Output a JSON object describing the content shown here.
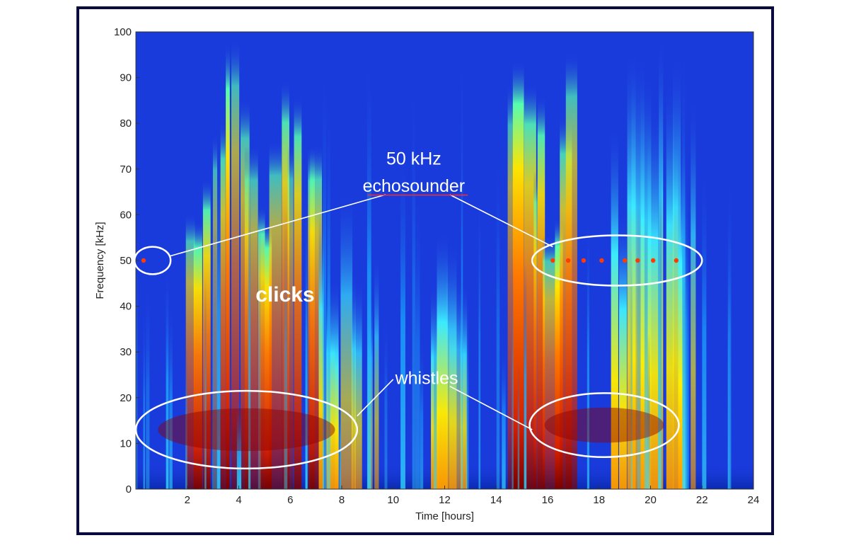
{
  "chart_data": {
    "type": "heatmap",
    "title": "",
    "xlabel": "Time [hours]",
    "ylabel": "Frequency [kHz]",
    "xlim": [
      0,
      24
    ],
    "ylim": [
      0,
      100
    ],
    "x_ticks": [
      2,
      4,
      6,
      8,
      10,
      12,
      14,
      16,
      18,
      20,
      22,
      24
    ],
    "y_ticks": [
      0,
      10,
      20,
      30,
      40,
      50,
      60,
      70,
      80,
      90,
      100
    ],
    "colormap": "jet",
    "background_color": "#1a3bdc",
    "grid": false,
    "energy_bands": [
      {
        "name": "clicks",
        "hour_start": 2.0,
        "hour_end": 7.2,
        "freq_top": 100,
        "intensity": "high"
      },
      {
        "name": "clicks",
        "hour_start": 14.5,
        "hour_end": 17.2,
        "freq_top": 100,
        "intensity": "high"
      },
      {
        "name": "clicks",
        "hour_start": 7.2,
        "hour_end": 9.5,
        "freq_top": 70,
        "intensity": "medium"
      },
      {
        "name": "clicks",
        "hour_start": 11.5,
        "hour_end": 13.0,
        "freq_top": 80,
        "intensity": "medium"
      },
      {
        "name": "clicks",
        "hour_start": 18.5,
        "hour_end": 21.8,
        "freq_top": 100,
        "intensity": "medium"
      }
    ],
    "echosounder_hits_hours": [
      0.3,
      16.2,
      16.8,
      17.4,
      18.1,
      19.0,
      19.5,
      20.1,
      21.0
    ],
    "echosounder_freq_khz": 50,
    "annotations": [
      {
        "text": "50 kHz",
        "x": 10.8,
        "y": 71
      },
      {
        "text": "echosounder",
        "x": 10.8,
        "y": 65
      },
      {
        "text": "clicks",
        "x": 5.8,
        "y": 41
      },
      {
        "text": "whistles",
        "x": 11.3,
        "y": 23
      }
    ],
    "ellipses": [
      {
        "label": "echosounder",
        "cx": 0.65,
        "cy": 50,
        "rx": 0.7,
        "ry": 3
      },
      {
        "label": "echosounder",
        "cx": 18.7,
        "cy": 50,
        "rx": 3.3,
        "ry": 5.5
      },
      {
        "label": "whistles",
        "cx": 4.3,
        "cy": 13,
        "rx": 4.3,
        "ry": 8.5
      },
      {
        "label": "whistles",
        "cx": 18.2,
        "cy": 14,
        "rx": 2.9,
        "ry": 7
      }
    ]
  }
}
